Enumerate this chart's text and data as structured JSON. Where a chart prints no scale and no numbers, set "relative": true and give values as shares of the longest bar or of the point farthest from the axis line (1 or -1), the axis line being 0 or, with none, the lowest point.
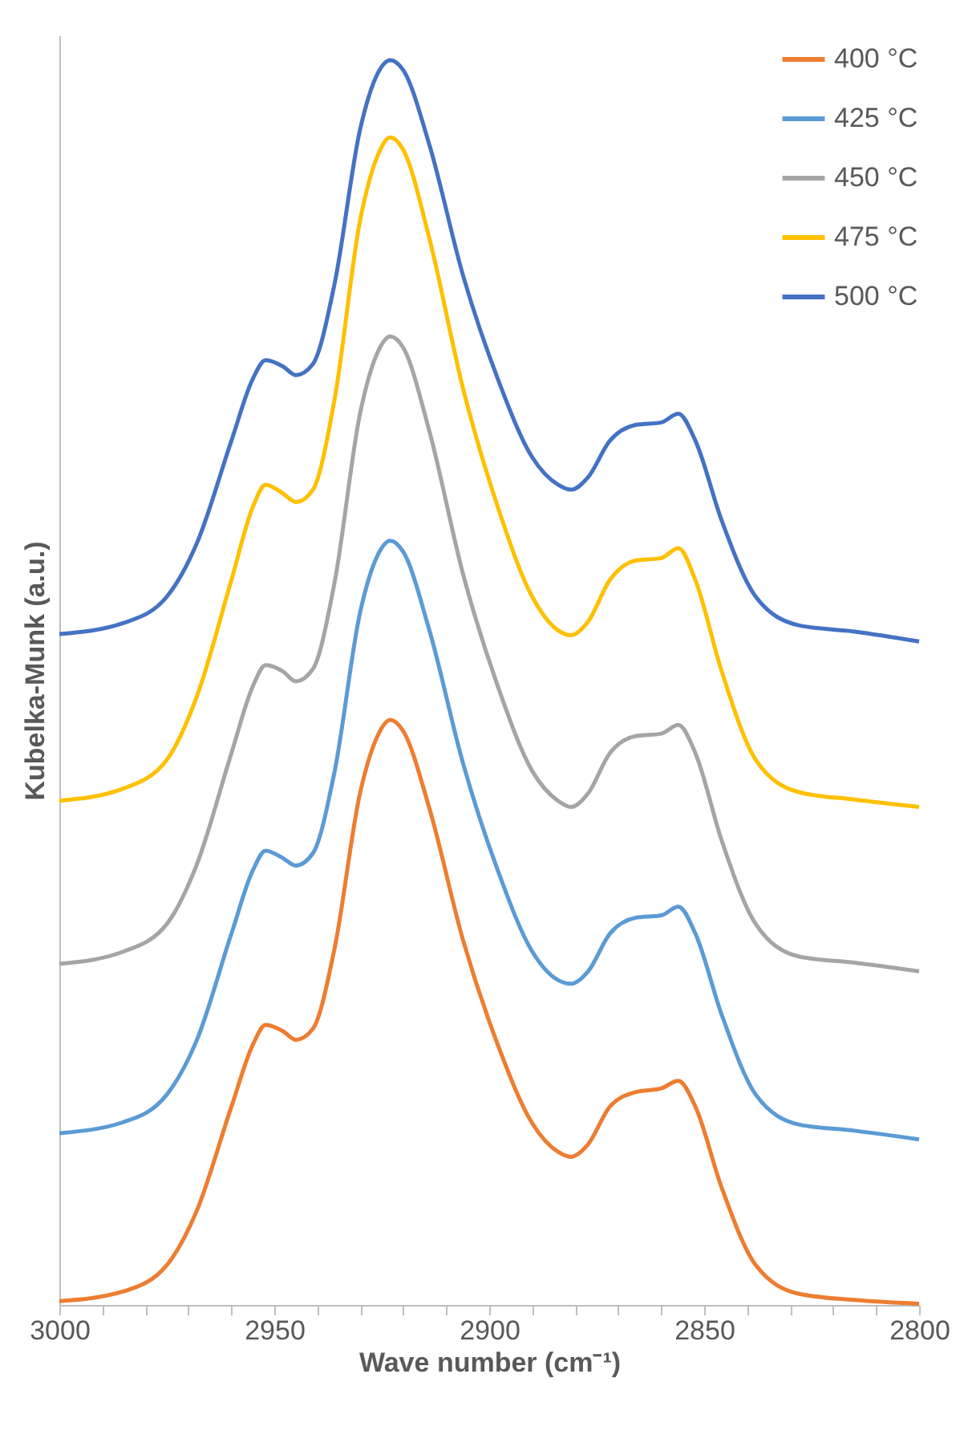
{
  "chart_data": {
    "type": "line",
    "relative": true,
    "xlabel": "Wave number (cm⁻¹)",
    "ylabel": "Kubelka-Munk (a.u.)",
    "xlim": [
      3000,
      2800
    ],
    "xticks": [
      3000,
      {
        "value": 2990,
        "label": null
      },
      {
        "value": 2980,
        "label": null
      },
      {
        "value": 2970,
        "label": null
      },
      {
        "value": 2960,
        "label": null
      },
      2950,
      {
        "value": 2940,
        "label": null
      },
      {
        "value": 2930,
        "label": null
      },
      {
        "value": 2920,
        "label": null
      },
      {
        "value": 2910,
        "label": null
      },
      2900,
      {
        "value": 2890,
        "label": null
      },
      {
        "value": 2880,
        "label": null
      },
      {
        "value": 2870,
        "label": null
      },
      {
        "value": 2860,
        "label": null
      },
      2850,
      {
        "value": 2840,
        "label": null
      },
      {
        "value": 2830,
        "label": null
      },
      {
        "value": 2820,
        "label": null
      },
      {
        "value": 2810,
        "label": null
      },
      2800
    ],
    "x": [
      3000,
      2985,
      2975,
      2968,
      2960,
      2955,
      2952,
      2948,
      2945,
      2941,
      2936,
      2930,
      2926,
      2923,
      2920,
      2914,
      2906,
      2898,
      2890,
      2884,
      2881,
      2877,
      2872,
      2866,
      2860,
      2856,
      2852,
      2846,
      2838,
      2828,
      2815,
      2800
    ],
    "grid": false,
    "legend": "top right",
    "tick_labels": "x",
    "line_style": "solid",
    "marker": "none",
    "series": [
      {
        "name": "400 °C",
        "color": "#ed7d31",
        "values": [
          0.003,
          0.011,
          0.032,
          0.076,
          0.159,
          0.209,
          0.225,
          0.22,
          0.213,
          0.222,
          0.286,
          0.412,
          0.457,
          0.47,
          0.461,
          0.4,
          0.292,
          0.209,
          0.146,
          0.123,
          0.119,
          0.129,
          0.159,
          0.171,
          0.174,
          0.18,
          0.159,
          0.095,
          0.032,
          0.009,
          0.004,
          0.001
        ]
      },
      {
        "name": "425 °C",
        "color": "#5b9bd5",
        "values": [
          0.138,
          0.147,
          0.169,
          0.213,
          0.298,
          0.349,
          0.365,
          0.359,
          0.353,
          0.363,
          0.428,
          0.557,
          0.602,
          0.614,
          0.605,
          0.543,
          0.434,
          0.349,
          0.284,
          0.261,
          0.258,
          0.268,
          0.298,
          0.311,
          0.313,
          0.32,
          0.298,
          0.234,
          0.169,
          0.145,
          0.14,
          0.133
        ]
      },
      {
        "name": "450 °C",
        "color": "#a5a5a5",
        "values": [
          0.274,
          0.284,
          0.306,
          0.354,
          0.443,
          0.497,
          0.514,
          0.509,
          0.501,
          0.511,
          0.58,
          0.717,
          0.765,
          0.778,
          0.769,
          0.703,
          0.586,
          0.497,
          0.429,
          0.405,
          0.4,
          0.411,
          0.443,
          0.457,
          0.459,
          0.466,
          0.443,
          0.374,
          0.306,
          0.28,
          0.275,
          0.268
        ]
      },
      {
        "name": "475 °C",
        "color": "#ffc000",
        "values": [
          0.405,
          0.415,
          0.438,
          0.489,
          0.582,
          0.641,
          0.659,
          0.652,
          0.645,
          0.655,
          0.727,
          0.872,
          0.923,
          0.938,
          0.928,
          0.858,
          0.735,
          0.641,
          0.569,
          0.542,
          0.538,
          0.549,
          0.582,
          0.598,
          0.6,
          0.608,
          0.582,
          0.51,
          0.438,
          0.412,
          0.406,
          0.4
        ]
      },
      {
        "name": "500 °C",
        "color": "#4472c4",
        "values": [
          0.539,
          0.548,
          0.569,
          0.612,
          0.694,
          0.744,
          0.759,
          0.754,
          0.747,
          0.756,
          0.82,
          0.945,
          0.989,
          1.0,
          0.992,
          0.933,
          0.826,
          0.744,
          0.681,
          0.659,
          0.655,
          0.665,
          0.694,
          0.707,
          0.709,
          0.716,
          0.694,
          0.631,
          0.569,
          0.546,
          0.541,
          0.533
        ]
      }
    ]
  }
}
